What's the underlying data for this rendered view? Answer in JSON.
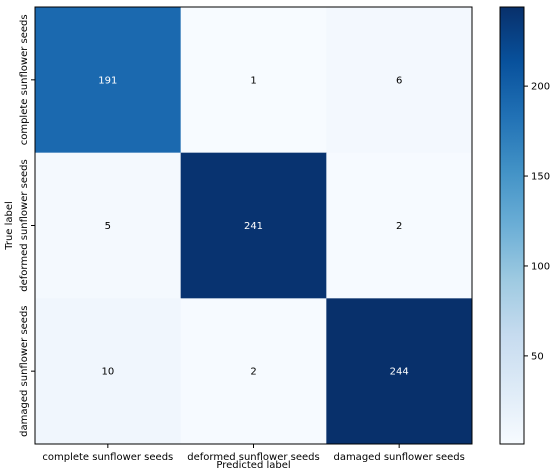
{
  "chart_data": {
    "type": "heatmap",
    "title": "",
    "xlabel": "Predicted label",
    "ylabel": "True label",
    "x_categories": [
      "complete sunflower seeds",
      "deformed sunflower seeds",
      "damaged sunflower seeds"
    ],
    "y_categories": [
      "complete sunflower seeds",
      "deformed sunflower seeds",
      "damaged sunflower seeds"
    ],
    "matrix": [
      [
        191,
        1,
        6
      ],
      [
        5,
        241,
        2
      ],
      [
        10,
        2,
        244
      ]
    ],
    "colormap": "Blues",
    "color_range": [
      1,
      244
    ],
    "colorbar_ticks": [
      50,
      100,
      150,
      200
    ],
    "cell_text_threshold": 122.5,
    "colors": {
      "low": "#f7fbff",
      "high": "#08306b",
      "text_dark": "#000000",
      "text_light": "#ffffff"
    }
  }
}
